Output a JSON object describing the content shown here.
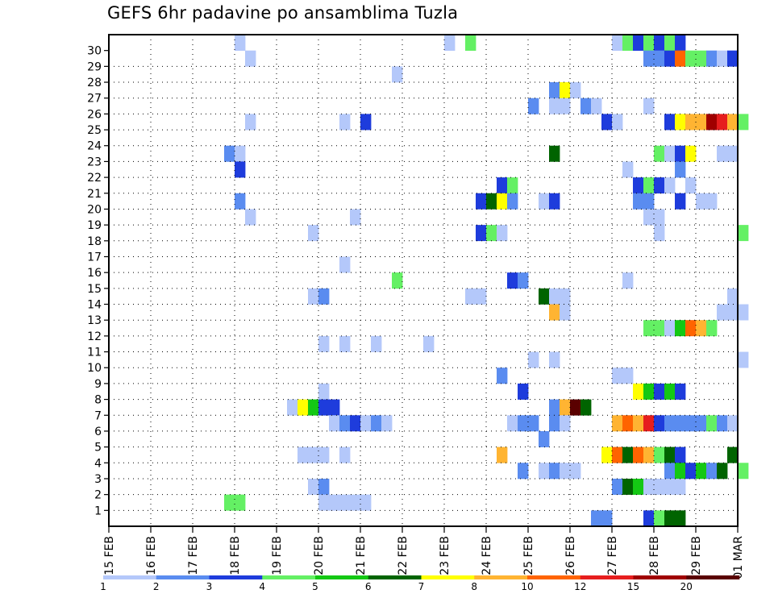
{
  "title": "GEFS 6hr padavine po ansamblima Tuzla",
  "chart_data": {
    "type": "heatmap",
    "title": "GEFS 6hr padavine po ansamblima Tuzla",
    "xlabel": "",
    "ylabel": "",
    "x_range": [
      "15 FEB 00Z",
      "01 MAR 00Z"
    ],
    "x_step_hours": 6,
    "x_tick_labels": [
      "15 FEB",
      "16 FEB",
      "17 FEB",
      "18 FEB",
      "19 FEB",
      "20 FEB",
      "21 FEB",
      "22 FEB",
      "23 FEB",
      "24 FEB",
      "25 FEB",
      "26 FEB",
      "27 FEB",
      "28 FEB",
      "29 FEB",
      "01 MAR"
    ],
    "y_tick_labels": [
      1,
      2,
      3,
      4,
      5,
      6,
      7,
      8,
      9,
      10,
      11,
      12,
      13,
      14,
      15,
      16,
      17,
      18,
      19,
      20,
      21,
      22,
      23,
      24,
      25,
      26,
      27,
      28,
      29,
      30
    ],
    "grid": true,
    "legend_position": "bottom",
    "legend": {
      "labels": [
        "1",
        "2",
        "3",
        "4",
        "5",
        "6",
        "7",
        "8",
        "10",
        "12",
        "15",
        "20"
      ],
      "colors": [
        "#b4c8fa",
        "#5a8cf0",
        "#1e3cdc",
        "#64f064",
        "#14c814",
        "#006400",
        "#ffff00",
        "#ffb432",
        "#ff6400",
        "#e61e1e",
        "#a00000",
        "#5a0000"
      ]
    },
    "note_cell_values": "each cell = [ensemble member, 6-h step index from 15 FEB 00Z, color class 0..11]",
    "cells": [
      [
        30,
        12,
        0
      ],
      [
        30,
        32,
        0
      ],
      [
        30,
        34,
        3
      ],
      [
        30,
        48,
        0
      ],
      [
        30,
        49,
        3
      ],
      [
        30,
        50,
        2
      ],
      [
        30,
        51,
        3
      ],
      [
        30,
        52,
        2
      ],
      [
        30,
        53,
        3
      ],
      [
        30,
        54,
        2
      ],
      [
        29,
        13,
        0
      ],
      [
        29,
        51,
        1
      ],
      [
        29,
        52,
        1
      ],
      [
        29,
        53,
        2
      ],
      [
        29,
        54,
        8
      ],
      [
        29,
        55,
        3
      ],
      [
        29,
        56,
        3
      ],
      [
        29,
        57,
        1
      ],
      [
        29,
        58,
        0
      ],
      [
        29,
        59,
        2
      ],
      [
        28,
        27,
        0
      ],
      [
        27,
        42,
        1
      ],
      [
        27,
        43,
        6
      ],
      [
        27,
        44,
        0
      ],
      [
        26,
        40,
        1
      ],
      [
        26,
        42,
        0
      ],
      [
        26,
        43,
        0
      ],
      [
        26,
        45,
        1
      ],
      [
        26,
        46,
        0
      ],
      [
        26,
        51,
        0
      ],
      [
        25,
        13,
        0
      ],
      [
        25,
        22,
        0
      ],
      [
        25,
        24,
        2
      ],
      [
        25,
        47,
        2
      ],
      [
        25,
        48,
        0
      ],
      [
        25,
        53,
        2
      ],
      [
        25,
        54,
        6
      ],
      [
        25,
        55,
        7
      ],
      [
        25,
        56,
        7
      ],
      [
        25,
        57,
        10
      ],
      [
        25,
        58,
        9
      ],
      [
        25,
        59,
        7
      ],
      [
        25,
        60,
        3
      ],
      [
        23,
        11,
        1
      ],
      [
        23,
        12,
        0
      ],
      [
        23,
        42,
        5
      ],
      [
        23,
        52,
        3
      ],
      [
        23,
        53,
        0
      ],
      [
        23,
        54,
        2
      ],
      [
        23,
        55,
        6
      ],
      [
        23,
        58,
        0
      ],
      [
        23,
        59,
        0
      ],
      [
        22,
        12,
        2
      ],
      [
        22,
        49,
        0
      ],
      [
        22,
        54,
        1
      ],
      [
        21,
        37,
        2
      ],
      [
        21,
        38,
        3
      ],
      [
        21,
        50,
        2
      ],
      [
        21,
        51,
        3
      ],
      [
        21,
        52,
        2
      ],
      [
        21,
        53,
        0
      ],
      [
        21,
        55,
        0
      ],
      [
        20,
        12,
        1
      ],
      [
        20,
        35,
        2
      ],
      [
        20,
        36,
        5
      ],
      [
        20,
        37,
        6
      ],
      [
        20,
        38,
        1
      ],
      [
        20,
        41,
        0
      ],
      [
        20,
        42,
        2
      ],
      [
        20,
        50,
        1
      ],
      [
        20,
        51,
        1
      ],
      [
        20,
        54,
        2
      ],
      [
        20,
        56,
        0
      ],
      [
        20,
        57,
        0
      ],
      [
        19,
        13,
        0
      ],
      [
        19,
        23,
        0
      ],
      [
        19,
        51,
        0
      ],
      [
        19,
        52,
        0
      ],
      [
        18,
        19,
        0
      ],
      [
        18,
        35,
        2
      ],
      [
        18,
        36,
        3
      ],
      [
        18,
        37,
        0
      ],
      [
        18,
        52,
        0
      ],
      [
        18,
        60,
        3
      ],
      [
        16,
        22,
        0
      ],
      [
        15,
        27,
        3
      ],
      [
        15,
        38,
        2
      ],
      [
        15,
        39,
        1
      ],
      [
        15,
        49,
        0
      ],
      [
        14,
        19,
        0
      ],
      [
        14,
        20,
        1
      ],
      [
        14,
        34,
        0
      ],
      [
        14,
        35,
        0
      ],
      [
        14,
        41,
        5
      ],
      [
        14,
        42,
        0
      ],
      [
        14,
        43,
        0
      ],
      [
        14,
        59,
        0
      ],
      [
        13,
        42,
        7
      ],
      [
        13,
        43,
        0
      ],
      [
        13,
        58,
        0
      ],
      [
        13,
        59,
        0
      ],
      [
        13,
        60,
        0
      ],
      [
        12,
        51,
        3
      ],
      [
        12,
        52,
        3
      ],
      [
        12,
        53,
        0
      ],
      [
        12,
        54,
        4
      ],
      [
        12,
        55,
        8
      ],
      [
        12,
        56,
        7
      ],
      [
        12,
        57,
        3
      ],
      [
        11,
        20,
        0
      ],
      [
        11,
        22,
        0
      ],
      [
        11,
        25,
        0
      ],
      [
        11,
        30,
        0
      ],
      [
        10,
        40,
        0
      ],
      [
        10,
        42,
        0
      ],
      [
        10,
        60,
        0
      ],
      [
        9,
        37,
        1
      ],
      [
        9,
        48,
        0
      ],
      [
        9,
        49,
        0
      ],
      [
        8,
        20,
        0
      ],
      [
        8,
        39,
        2
      ],
      [
        8,
        50,
        6
      ],
      [
        8,
        51,
        4
      ],
      [
        8,
        52,
        2
      ],
      [
        8,
        53,
        4
      ],
      [
        8,
        54,
        2
      ],
      [
        7,
        17,
        0
      ],
      [
        7,
        18,
        6
      ],
      [
        7,
        19,
        4
      ],
      [
        7,
        20,
        2
      ],
      [
        7,
        21,
        2
      ],
      [
        7,
        42,
        1
      ],
      [
        7,
        43,
        7
      ],
      [
        7,
        44,
        11
      ],
      [
        7,
        45,
        5
      ],
      [
        6,
        21,
        0
      ],
      [
        6,
        22,
        1
      ],
      [
        6,
        23,
        2
      ],
      [
        6,
        24,
        0
      ],
      [
        6,
        25,
        1
      ],
      [
        6,
        26,
        0
      ],
      [
        6,
        38,
        0
      ],
      [
        6,
        39,
        1
      ],
      [
        6,
        40,
        1
      ],
      [
        6,
        42,
        1
      ],
      [
        6,
        43,
        0
      ],
      [
        6,
        48,
        7
      ],
      [
        6,
        49,
        8
      ],
      [
        6,
        50,
        7
      ],
      [
        6,
        51,
        9
      ],
      [
        6,
        52,
        2
      ],
      [
        6,
        53,
        1
      ],
      [
        6,
        54,
        1
      ],
      [
        6,
        55,
        1
      ],
      [
        6,
        56,
        1
      ],
      [
        6,
        57,
        3
      ],
      [
        6,
        58,
        1
      ],
      [
        6,
        59,
        0
      ],
      [
        5,
        41,
        1
      ],
      [
        4,
        18,
        0
      ],
      [
        4,
        19,
        0
      ],
      [
        4,
        20,
        0
      ],
      [
        4,
        22,
        0
      ],
      [
        4,
        37,
        7
      ],
      [
        4,
        47,
        6
      ],
      [
        4,
        48,
        8
      ],
      [
        4,
        49,
        5
      ],
      [
        4,
        50,
        8
      ],
      [
        4,
        51,
        7
      ],
      [
        4,
        52,
        3
      ],
      [
        4,
        53,
        5
      ],
      [
        4,
        54,
        2
      ],
      [
        4,
        59,
        5
      ],
      [
        3,
        39,
        1
      ],
      [
        3,
        41,
        0
      ],
      [
        3,
        42,
        1
      ],
      [
        3,
        43,
        0
      ],
      [
        3,
        44,
        0
      ],
      [
        3,
        53,
        1
      ],
      [
        3,
        54,
        4
      ],
      [
        3,
        55,
        2
      ],
      [
        3,
        56,
        4
      ],
      [
        3,
        57,
        1
      ],
      [
        3,
        58,
        5
      ],
      [
        3,
        60,
        3
      ],
      [
        2,
        19,
        0
      ],
      [
        2,
        20,
        1
      ],
      [
        2,
        48,
        1
      ],
      [
        2,
        49,
        5
      ],
      [
        2,
        50,
        4
      ],
      [
        2,
        51,
        0
      ],
      [
        2,
        52,
        0
      ],
      [
        2,
        53,
        0
      ],
      [
        2,
        54,
        0
      ],
      [
        1,
        11,
        3
      ],
      [
        1,
        12,
        3
      ],
      [
        1,
        20,
        0
      ],
      [
        1,
        21,
        0
      ],
      [
        1,
        22,
        0
      ],
      [
        1,
        23,
        0
      ],
      [
        1,
        24,
        0
      ],
      [
        0,
        46,
        1
      ],
      [
        0,
        47,
        1
      ],
      [
        0,
        51,
        2
      ],
      [
        0,
        52,
        3
      ],
      [
        0,
        53,
        5
      ],
      [
        0,
        54,
        5
      ]
    ]
  }
}
